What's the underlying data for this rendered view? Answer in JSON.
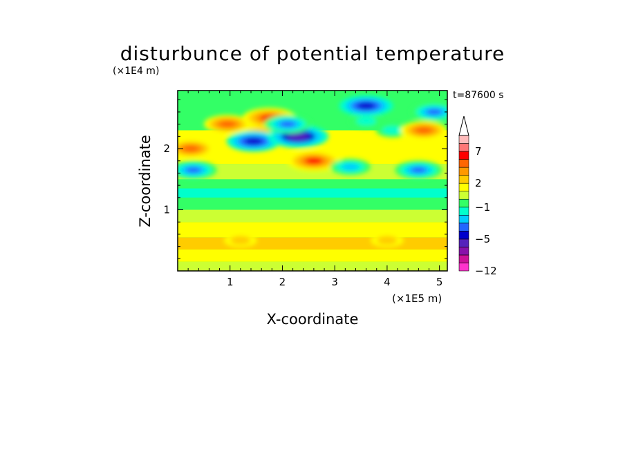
{
  "chart_data": {
    "type": "heatmap",
    "title": "disturbunce of potential temperature",
    "time_label": "t=87600 s",
    "xlabel": "X-coordinate",
    "ylabel": "Z-coordinate",
    "x_scale_label": "(×1E5 m)",
    "y_scale_label": "(×1E4 m)",
    "xlim": [
      0,
      5.15
    ],
    "ylim": [
      0,
      2.95
    ],
    "x_ticks": [
      1,
      2,
      3,
      4,
      5
    ],
    "y_ticks": [
      1,
      2
    ],
    "colorbar": {
      "labels": [
        {
          "text": "7",
          "value": 7
        },
        {
          "text": "2",
          "value": 2
        },
        {
          "text": "−1",
          "value": -1
        },
        {
          "text": "−5",
          "value": -5
        },
        {
          "text": "−12",
          "value": -12
        }
      ],
      "levels": [
        -12,
        -10,
        -8,
        -6,
        -5,
        -4,
        -3,
        -2,
        -1,
        0,
        1,
        2,
        3,
        4,
        5,
        7,
        9
      ],
      "colors": [
        "#ff33cc",
        "#cc1199",
        "#8811aa",
        "#5522bb",
        "#0000cc",
        "#2266ff",
        "#00ccff",
        "#00ffcc",
        "#33ff66",
        "#ccff33",
        "#ffff00",
        "#ffcc00",
        "#ff9900",
        "#ff6600",
        "#ff0000",
        "#ff7777",
        "#ffbbbb"
      ],
      "extend_top": true
    },
    "features": [
      {
        "x": 0.25,
        "z": 2.0,
        "value": 4
      },
      {
        "x": 0.3,
        "z": 1.65,
        "value": -4
      },
      {
        "x": 0.95,
        "z": 2.4,
        "value": 4
      },
      {
        "x": 1.55,
        "z": 2.25,
        "value": 3
      },
      {
        "x": 1.45,
        "z": 2.12,
        "value": -5
      },
      {
        "x": 1.75,
        "z": 2.5,
        "value": 5
      },
      {
        "x": 2.3,
        "z": 2.2,
        "value": -6
      },
      {
        "x": 2.1,
        "z": 2.4,
        "value": -4
      },
      {
        "x": 2.6,
        "z": 1.8,
        "value": 5
      },
      {
        "x": 3.3,
        "z": 1.7,
        "value": -3
      },
      {
        "x": 3.6,
        "z": 2.45,
        "value": -2
      },
      {
        "x": 3.6,
        "z": 2.7,
        "value": -5
      },
      {
        "x": 4.1,
        "z": 2.3,
        "value": -2
      },
      {
        "x": 4.7,
        "z": 2.3,
        "value": 4
      },
      {
        "x": 4.9,
        "z": 2.6,
        "value": -4
      },
      {
        "x": 4.6,
        "z": 1.65,
        "value": -4
      },
      {
        "x": 1.2,
        "z": 0.5,
        "value": 2
      },
      {
        "x": 4.0,
        "z": 0.5,
        "value": 2
      }
    ]
  }
}
